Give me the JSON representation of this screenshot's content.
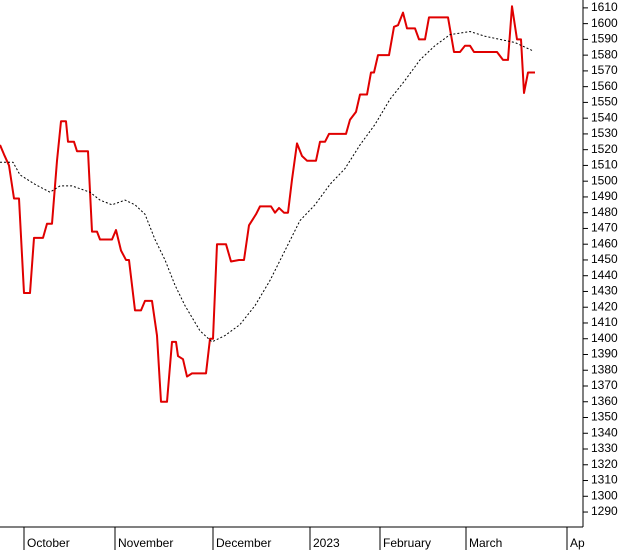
{
  "chart_data": {
    "type": "line",
    "series": [
      {
        "color": "#e00000",
        "style": "solid",
        "x": [
          0,
          1,
          2.25,
          3.5,
          4.75,
          6,
          7.5,
          8.5,
          10.75,
          11.75,
          13,
          14.25,
          15.25,
          16.5,
          17,
          18.5,
          19.25,
          22,
          23,
          24.25,
          25,
          28,
          29,
          30.25,
          31.5,
          32.25,
          33.75,
          35.25,
          36.25,
          38,
          39.25,
          40.25,
          41.75,
          43,
          44,
          44.5,
          45.75,
          46.75,
          48,
          51.5,
          52.5,
          53.25,
          54.25,
          56.5,
          57.75,
          59.75,
          61,
          62.25,
          64,
          65,
          67.75,
          68.75,
          69.75,
          71,
          72,
          73,
          74.25,
          75.5,
          76.75,
          79,
          80,
          81.25,
          82.25,
          86.5,
          87.5,
          89,
          90,
          91.75,
          92.75,
          93.5,
          94.5,
          97.25,
          98.5,
          99.5,
          100.75,
          101.75,
          103.75,
          104.75,
          106.25,
          107.25,
          112,
          113.5,
          115,
          116.25,
          117.5,
          118.5,
          124.25,
          125.75,
          127,
          128,
          129.25,
          130.25,
          131,
          132,
          133.75
        ],
        "values": [
          1523,
          1517,
          1510,
          1489,
          1489,
          1429,
          1429,
          1464,
          1464,
          1473,
          1473,
          1513,
          1538,
          1538,
          1525,
          1525,
          1519,
          1519,
          1468,
          1468,
          1463,
          1463,
          1469,
          1456,
          1450,
          1450,
          1418,
          1418,
          1424,
          1424,
          1402,
          1360,
          1360,
          1398,
          1398,
          1389,
          1387,
          1376,
          1378,
          1378,
          1400,
          1400,
          1460,
          1460,
          1449,
          1450,
          1450,
          1472,
          1479,
          1484,
          1484,
          1480,
          1483,
          1480,
          1480,
          1501,
          1524,
          1516,
          1513,
          1513,
          1525,
          1525,
          1530,
          1530,
          1539,
          1544,
          1555,
          1555,
          1569,
          1569,
          1580,
          1580,
          1598,
          1599,
          1607,
          1597,
          1597,
          1590,
          1590,
          1604,
          1604,
          1582,
          1582,
          1586,
          1586,
          1582,
          1582,
          1577,
          1577,
          1611,
          1590,
          1590,
          1556,
          1569,
          1569
        ]
      },
      {
        "color": "#000000",
        "style": "dotted",
        "x": [
          0,
          3.25,
          5,
          8.75,
          12.5,
          15,
          18,
          22.5,
          25,
          28,
          31.25,
          33.75,
          36.25,
          38.75,
          41.25,
          43.75,
          46.25,
          50,
          53,
          56.25,
          60,
          63.75,
          67.5,
          71.25,
          75,
          78.75,
          82.5,
          86.25,
          90,
          93.75,
          97.5,
          101.25,
          105,
          108.75,
          112.5,
          117.5,
          121.25,
          125,
          128.75,
          133
        ],
        "values": [
          1512,
          1512,
          1504,
          1498,
          1493,
          1497,
          1497,
          1493,
          1488,
          1485,
          1488,
          1485,
          1479,
          1463,
          1450,
          1434,
          1421,
          1405,
          1398,
          1402,
          1409,
          1421,
          1437,
          1456,
          1475,
          1485,
          1498,
          1508,
          1523,
          1536,
          1552,
          1564,
          1577,
          1586,
          1593,
          1595,
          1592,
          1590,
          1588,
          1583
        ]
      }
    ],
    "xlim": [
      0,
      145.75
    ],
    "xticks": [
      {
        "value": 6,
        "label": "October"
      },
      {
        "value": 28.75,
        "label": "November"
      },
      {
        "value": 53.25,
        "label": "December"
      },
      {
        "value": 77.5,
        "label": "2023"
      },
      {
        "value": 95,
        "label": "February"
      },
      {
        "value": 116.5,
        "label": "March"
      },
      {
        "value": 141.75,
        "label": "Ap"
      }
    ],
    "ylim": [
      1280.5,
      1615
    ],
    "yticks": [
      1290,
      1300,
      1310,
      1320,
      1330,
      1340,
      1350,
      1360,
      1370,
      1380,
      1390,
      1400,
      1410,
      1420,
      1430,
      1440,
      1450,
      1460,
      1470,
      1480,
      1490,
      1500,
      1510,
      1520,
      1530,
      1540,
      1550,
      1560,
      1570,
      1580,
      1590,
      1600,
      1610
    ],
    "y_axis_side": "right"
  }
}
